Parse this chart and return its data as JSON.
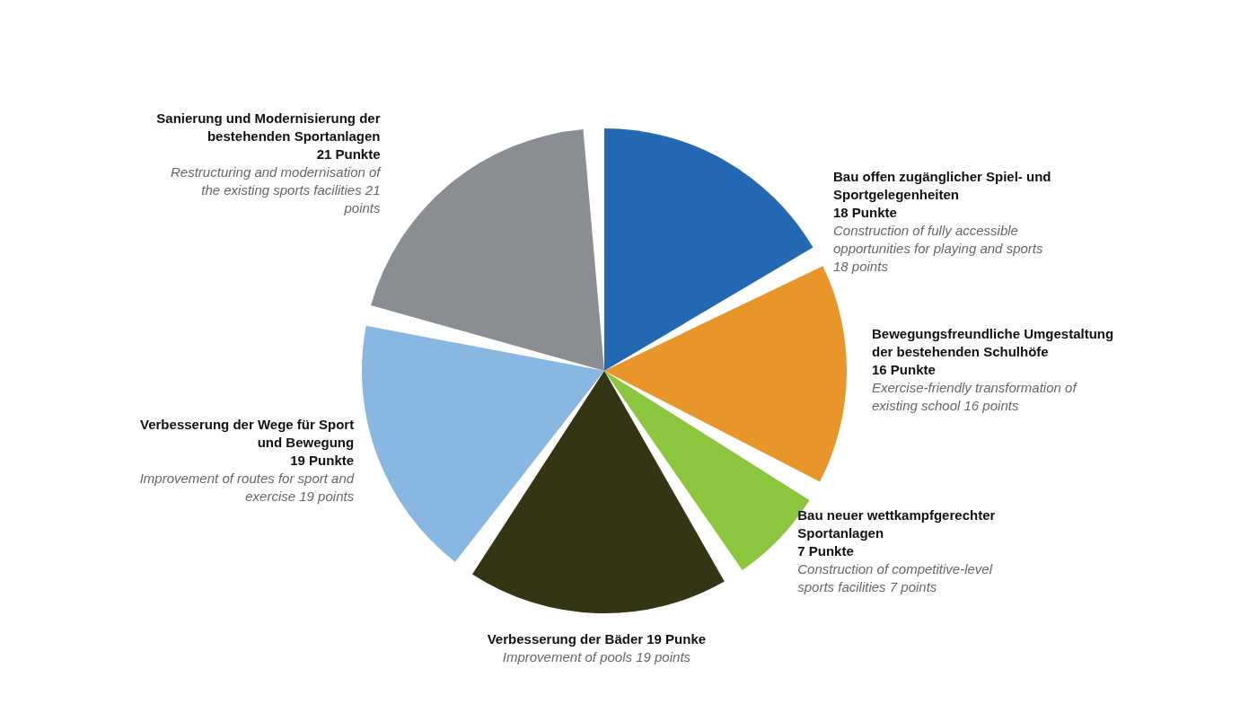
{
  "chart_data": {
    "type": "pie",
    "categories": [
      "Bau offen zugänglicher Spiel- und Sportgelegenheiten",
      "Bewegungsfreundliche Umgestaltung der bestehenden Schulhöfe",
      "Bau neuer wettkampfgerechter Sportanlagen",
      "Verbesserung der Bäder 19 Punke",
      "Verbesserung der Wege für Sport und Bewegung",
      "Sanierung und Modernisierung der bestehenden Sportanlagen"
    ],
    "values": [
      18,
      16,
      7,
      19,
      19,
      21
    ],
    "colors": [
      "#2268b3",
      "#e8952a",
      "#8cc63f",
      "#343514",
      "#88b8e2",
      "#8a8d91"
    ],
    "value_labels": [
      "18 Punkte",
      "16 Punkte",
      "7 Punkte",
      null,
      "19 Punkte",
      "21 Punkte"
    ],
    "annotations": [
      "Construction of fully accessible opportunities for playing and sports 18 points",
      "Exercise-friendly transformation of existing school 16 points",
      "Construction of competitive-level sports facilities 7 points",
      "Improvement of pools 19 points",
      "Improvement of routes for sport and exercise 19 points",
      "Restructuring and modernisation of the existing sports facilities 21 points"
    ]
  }
}
